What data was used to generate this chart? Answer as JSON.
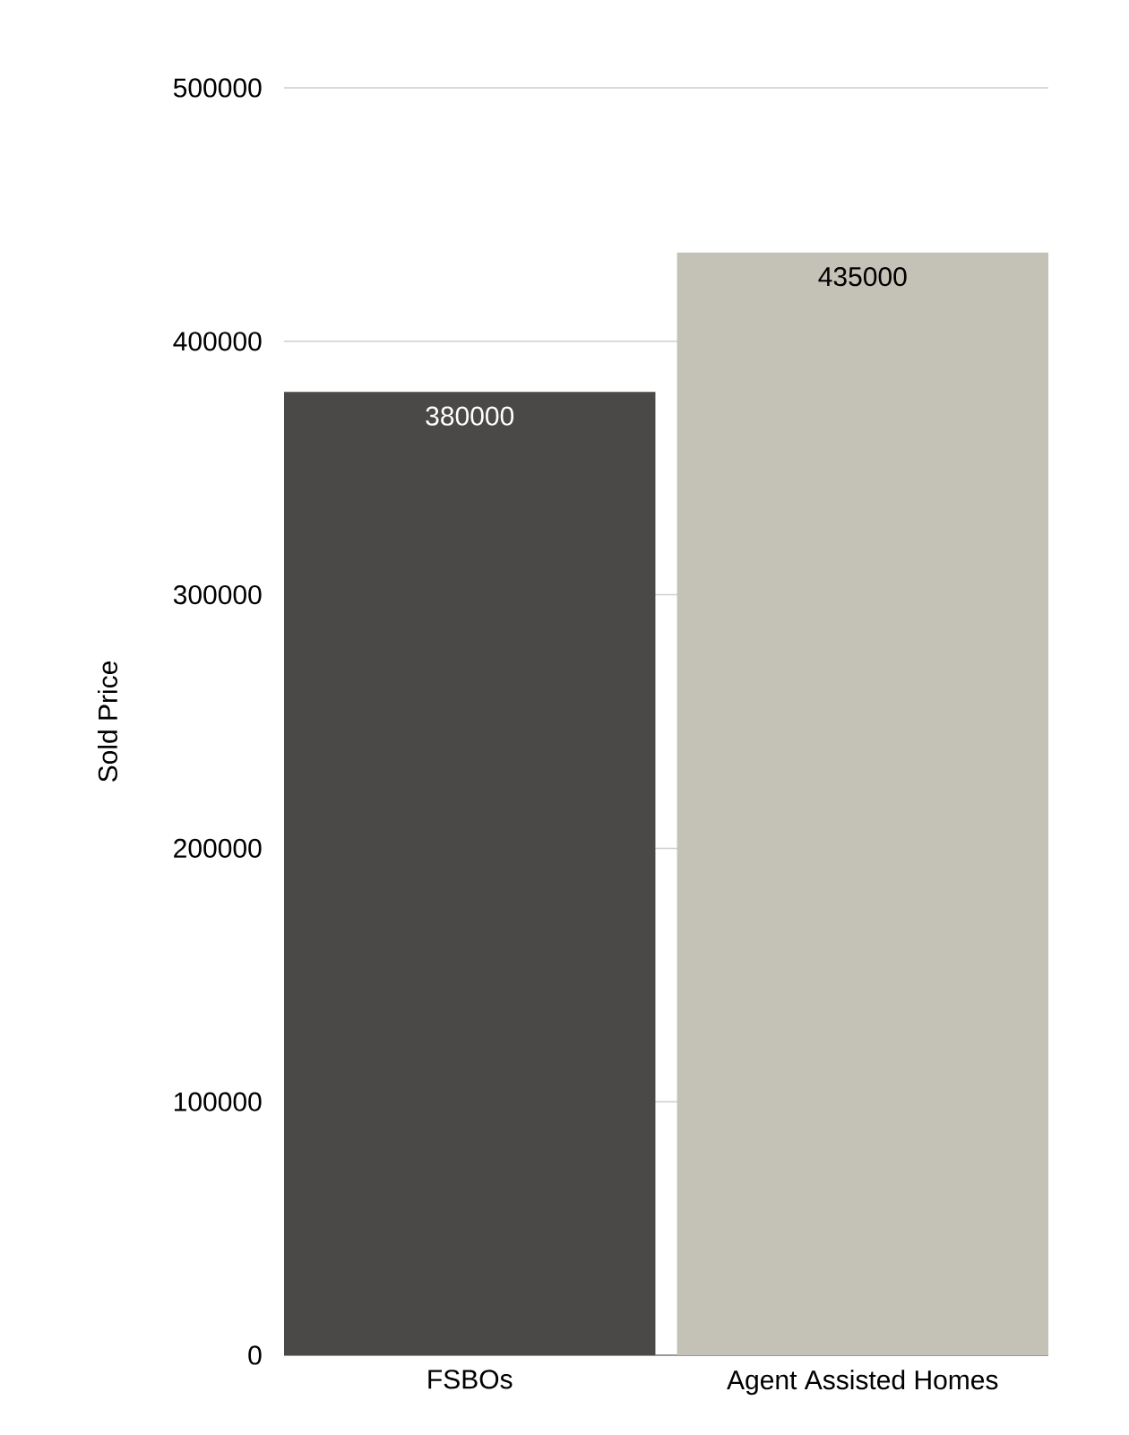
{
  "chart_data": {
    "type": "bar",
    "ylabel": "Sold Price",
    "categories": [
      "FSBOs",
      "Agent Assisted Homes"
    ],
    "values": [
      380000,
      435000
    ],
    "colors": [
      "#4a4947",
      "#c4c2b6"
    ],
    "ylim": [
      0,
      500000
    ],
    "yticks": [
      0,
      100000,
      200000,
      300000,
      400000,
      500000
    ],
    "grid": "y",
    "data_labels": true
  }
}
